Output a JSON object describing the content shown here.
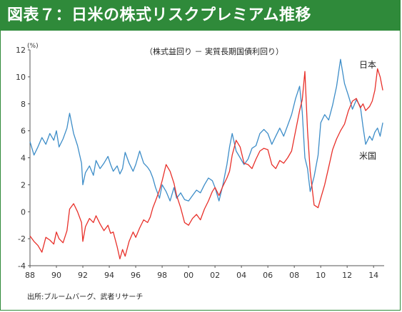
{
  "header": {
    "title": "図表７：日米の株式リスクプレミアム推移"
  },
  "source_note": "出所:ブルームバーグ、武者リサーチ",
  "chart_data": {
    "type": "line",
    "title": "",
    "subtitle": "（株式益回り － 実質長期国債利回り）",
    "ylabel": "(%)",
    "xlabel": "",
    "ylim": [
      -4,
      12
    ],
    "y_ticks": [
      -4,
      -2,
      0,
      2,
      4,
      6,
      8,
      10,
      12
    ],
    "xlim": [
      1988,
      2014.8
    ],
    "x_ticks": [
      1988,
      1990,
      1992,
      1994,
      1996,
      1998,
      2000,
      2002,
      2004,
      2006,
      2008,
      2010,
      2012,
      2014
    ],
    "x_tick_labels": [
      "88",
      "90",
      "92",
      "94",
      "96",
      "98",
      "00",
      "02",
      "04",
      "06",
      "08",
      "10",
      "12",
      "14"
    ],
    "grid": false,
    "colors": {
      "japan": "#e8302a",
      "us": "#3d8dc8",
      "frame": "#2f8a3a"
    },
    "series": [
      {
        "name": "日本",
        "x": [
          1988.0,
          1988.3,
          1988.6,
          1988.9,
          1989.2,
          1989.5,
          1989.8,
          1990.0,
          1990.2,
          1990.5,
          1990.8,
          1991.0,
          1991.3,
          1991.6,
          1991.9,
          1992.0,
          1992.2,
          1992.5,
          1992.8,
          1993.0,
          1993.3,
          1993.6,
          1993.9,
          1994.1,
          1994.3,
          1994.6,
          1994.8,
          1995.0,
          1995.2,
          1995.5,
          1995.8,
          1996.0,
          1996.3,
          1996.6,
          1996.9,
          1997.1,
          1997.3,
          1997.5,
          1997.8,
          1998.0,
          1998.3,
          1998.6,
          1998.9,
          1999.1,
          1999.4,
          1999.7,
          2000.0,
          2000.3,
          2000.6,
          2000.9,
          2001.2,
          2001.5,
          2001.8,
          2002.0,
          2002.3,
          2002.6,
          2002.9,
          2003.1,
          2003.3,
          2003.6,
          2003.9,
          2004.2,
          2004.5,
          2004.8,
          2005.1,
          2005.4,
          2005.7,
          2006.0,
          2006.3,
          2006.6,
          2006.9,
          2007.2,
          2007.5,
          2007.8,
          2008.1,
          2008.4,
          2008.6,
          2008.8,
          2009.0,
          2009.2,
          2009.5,
          2009.8,
          2010.0,
          2010.3,
          2010.6,
          2010.9,
          2011.2,
          2011.5,
          2011.8,
          2012.1,
          2012.4,
          2012.7,
          2013.0,
          2013.2,
          2013.4,
          2013.7,
          2013.9,
          2014.1,
          2014.3,
          2014.5,
          2014.7
        ],
        "values": [
          -1.8,
          -2.2,
          -2.5,
          -3.0,
          -1.9,
          -2.1,
          -2.4,
          -1.5,
          -2.0,
          -2.3,
          -1.4,
          0.2,
          0.6,
          0.0,
          -0.8,
          -2.2,
          -1.1,
          -0.5,
          -0.8,
          -0.3,
          -0.9,
          -1.4,
          -1.0,
          -1.6,
          -1.5,
          -2.6,
          -3.5,
          -2.8,
          -3.3,
          -2.2,
          -1.5,
          -1.9,
          -1.2,
          -0.6,
          -0.8,
          -0.4,
          0.3,
          0.8,
          1.6,
          2.3,
          3.5,
          3.0,
          2.1,
          1.2,
          0.3,
          -0.8,
          -1.0,
          -0.5,
          -0.2,
          -0.6,
          0.2,
          0.8,
          1.5,
          1.8,
          1.2,
          1.9,
          2.5,
          3.0,
          4.2,
          5.3,
          4.8,
          3.6,
          3.5,
          3.2,
          3.9,
          4.5,
          4.7,
          4.6,
          3.5,
          3.2,
          3.8,
          3.6,
          4.0,
          4.5,
          6.0,
          7.5,
          8.3,
          10.4,
          6.0,
          3.0,
          0.5,
          0.3,
          1.0,
          2.0,
          3.3,
          4.6,
          5.4,
          6.0,
          6.5,
          7.5,
          8.2,
          8.4,
          7.7,
          8.0,
          7.5,
          7.8,
          8.2,
          9.0,
          10.6,
          10.0,
          9.0
        ]
      },
      {
        "name": "米国",
        "x": [
          1988.0,
          1988.3,
          1988.6,
          1988.9,
          1989.2,
          1989.5,
          1989.8,
          1990.0,
          1990.2,
          1990.5,
          1990.8,
          1991.0,
          1991.3,
          1991.6,
          1991.9,
          1992.0,
          1992.2,
          1992.5,
          1992.8,
          1993.0,
          1993.3,
          1993.6,
          1993.9,
          1994.1,
          1994.3,
          1994.6,
          1994.8,
          1995.0,
          1995.2,
          1995.5,
          1995.8,
          1996.0,
          1996.3,
          1996.6,
          1996.9,
          1997.1,
          1997.3,
          1997.5,
          1997.8,
          1998.0,
          1998.3,
          1998.6,
          1998.9,
          1999.1,
          1999.4,
          1999.7,
          2000.0,
          2000.3,
          2000.6,
          2000.9,
          2001.2,
          2001.5,
          2001.8,
          2002.0,
          2002.3,
          2002.6,
          2002.9,
          2003.1,
          2003.3,
          2003.6,
          2003.9,
          2004.2,
          2004.5,
          2004.8,
          2005.1,
          2005.4,
          2005.7,
          2006.0,
          2006.3,
          2006.6,
          2006.9,
          2007.2,
          2007.5,
          2007.8,
          2008.1,
          2008.4,
          2008.6,
          2008.8,
          2009.0,
          2009.2,
          2009.5,
          2009.8,
          2010.0,
          2010.3,
          2010.6,
          2010.9,
          2011.2,
          2011.5,
          2011.8,
          2012.1,
          2012.4,
          2012.7,
          2013.0,
          2013.2,
          2013.4,
          2013.7,
          2013.9,
          2014.1,
          2014.3,
          2014.5,
          2014.7
        ],
        "values": [
          5.2,
          4.2,
          4.8,
          5.5,
          5.0,
          5.8,
          5.3,
          6.0,
          4.8,
          5.4,
          6.2,
          7.3,
          5.8,
          4.9,
          3.6,
          2.0,
          2.9,
          3.4,
          2.7,
          3.8,
          3.2,
          3.6,
          4.1,
          3.5,
          3.0,
          3.4,
          2.8,
          3.2,
          4.4,
          3.6,
          3.0,
          3.5,
          4.5,
          3.6,
          3.3,
          3.0,
          2.5,
          1.8,
          1.0,
          2.0,
          1.5,
          0.8,
          1.8,
          1.0,
          1.4,
          0.9,
          0.8,
          1.2,
          1.6,
          1.4,
          2.0,
          2.5,
          2.3,
          1.8,
          0.8,
          2.0,
          3.5,
          4.8,
          5.8,
          4.5,
          4.0,
          3.5,
          3.9,
          4.7,
          4.9,
          5.8,
          6.1,
          5.8,
          5.0,
          5.6,
          6.2,
          5.6,
          6.4,
          7.2,
          8.4,
          9.3,
          7.4,
          4.0,
          3.2,
          1.5,
          2.6,
          4.2,
          6.6,
          7.2,
          6.8,
          7.9,
          9.3,
          11.3,
          9.5,
          8.6,
          7.6,
          8.3,
          7.8,
          6.3,
          5.0,
          5.6,
          5.3,
          5.9,
          6.2,
          5.6,
          6.6
        ]
      }
    ]
  }
}
